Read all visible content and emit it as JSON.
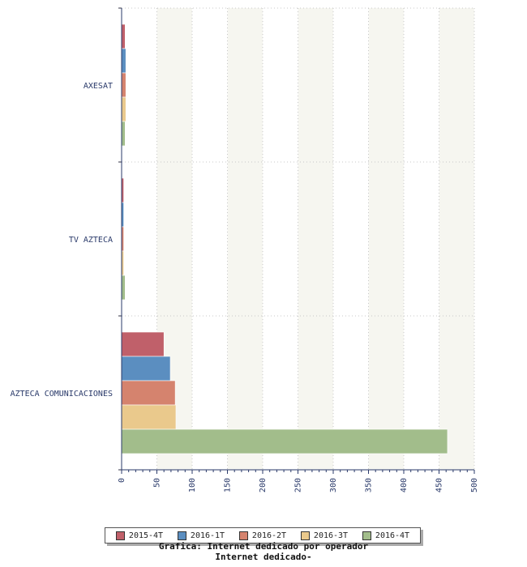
{
  "chart_data": {
    "type": "bar",
    "orientation": "horizontal",
    "title": "Grafica: Internet dedicado por operador",
    "subtitle": "Internet dedicado-",
    "categories": [
      "AXESAT",
      "TV AZTECA",
      "AZTECA COMUNICACIONES"
    ],
    "series": [
      {
        "name": "2015-4T",
        "color": "#c0606a",
        "values": [
          5,
          3,
          60
        ]
      },
      {
        "name": "2016-1T",
        "color": "#5b8ec0",
        "values": [
          6,
          3,
          69
        ]
      },
      {
        "name": "2016-2T",
        "color": "#d5836e",
        "values": [
          6,
          3,
          76
        ]
      },
      {
        "name": "2016-3T",
        "color": "#eac98c",
        "values": [
          6,
          3,
          77
        ]
      },
      {
        "name": "2016-4T",
        "color": "#a2bd8b",
        "values": [
          5,
          5,
          462
        ]
      }
    ],
    "xlim": [
      0,
      500
    ],
    "xticks": [
      "0",
      "50",
      "100",
      "150",
      "200",
      "250",
      "300",
      "350",
      "400",
      "450",
      "500"
    ],
    "grid": true,
    "legend_position": "bottom"
  }
}
